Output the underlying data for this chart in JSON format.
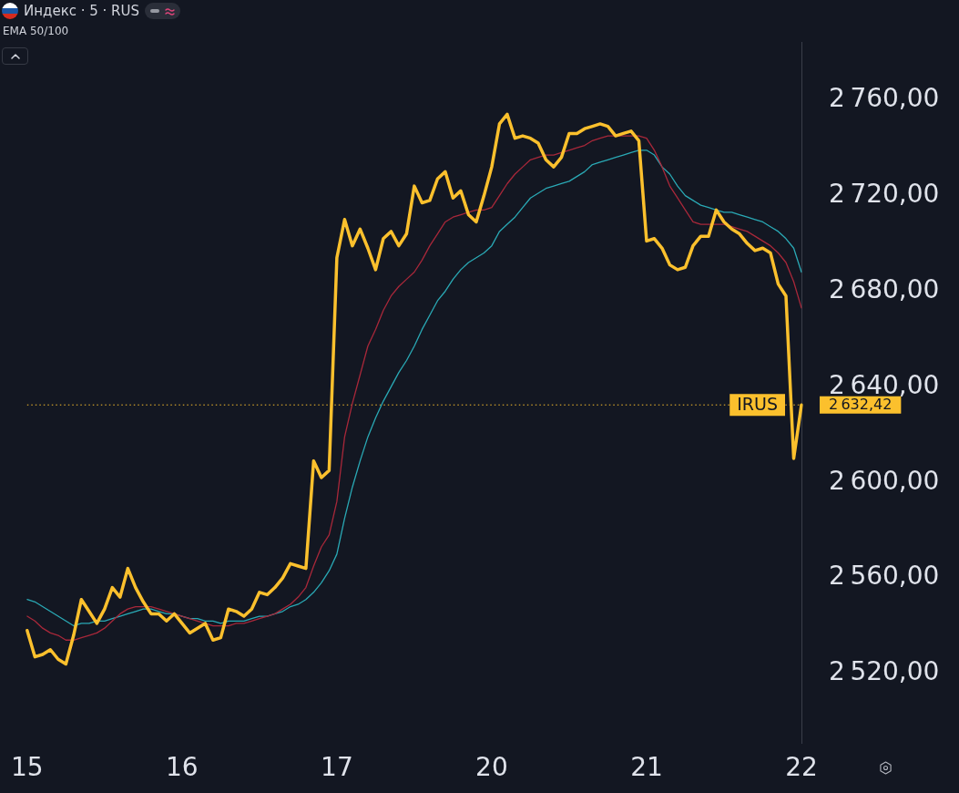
{
  "chart_data": {
    "type": "line",
    "title": "Индекс · 5 · RUS",
    "categories": [
      "15",
      null,
      null,
      null,
      null,
      null,
      null,
      null,
      null,
      null,
      null,
      null,
      null,
      null,
      null,
      null,
      null,
      null,
      null,
      null,
      "16",
      null,
      null,
      null,
      null,
      null,
      null,
      null,
      null,
      null,
      null,
      null,
      null,
      null,
      null,
      null,
      null,
      null,
      null,
      null,
      "17",
      null,
      null,
      null,
      null,
      null,
      null,
      null,
      null,
      null,
      null,
      null,
      null,
      null,
      null,
      null,
      null,
      null,
      null,
      null,
      "20",
      null,
      null,
      null,
      null,
      null,
      null,
      null,
      null,
      null,
      null,
      null,
      null,
      null,
      null,
      null,
      null,
      null,
      null,
      null,
      "21",
      null,
      null,
      null,
      null,
      null,
      null,
      null,
      null,
      null,
      null,
      null,
      null,
      null,
      null,
      null,
      null,
      null,
      null,
      null,
      "22"
    ],
    "series": [
      {
        "name": "IRUS",
        "color": "#fbc02d",
        "values": [
          2538,
          2527,
          2528,
          2530,
          2526,
          2524,
          2536,
          2551,
          2546,
          2541,
          2547,
          2556,
          2552,
          2564,
          2556,
          2550,
          2545,
          2545,
          2542,
          2545,
          2541,
          2537,
          2539,
          2541,
          2534,
          2535,
          2547,
          2546,
          2544,
          2547,
          2554,
          2553,
          2556,
          2560,
          2566,
          2565,
          2564,
          2609,
          2602,
          2605,
          2694,
          2710,
          2699,
          2706,
          2698,
          2689,
          2702,
          2705,
          2699,
          2704,
          2724,
          2717,
          2718,
          2727,
          2730,
          2719,
          2722,
          2712,
          2709,
          2720,
          2732,
          2750,
          2754,
          2744,
          2745,
          2744,
          2742,
          2735,
          2732,
          2736,
          2746,
          2746,
          2748,
          2749,
          2750,
          2749,
          2745,
          2746,
          2747,
          2743,
          2701,
          2702,
          2698,
          2691,
          2689,
          2690,
          2699,
          2703,
          2703,
          2714,
          2709,
          2706,
          2704,
          2700,
          2697,
          2698,
          2696,
          2683,
          2678,
          2610,
          2632.42
        ]
      },
      {
        "color": "#a8283a",
        "values": [
          2544,
          2542,
          2539,
          2537,
          2536,
          2534,
          2534,
          2535,
          2536,
          2537,
          2539,
          2542,
          2545,
          2547,
          2548,
          2548,
          2548,
          2547,
          2546,
          2545,
          2544,
          2543,
          2542,
          2541,
          2540,
          2540,
          2540,
          2541,
          2541,
          2542,
          2543,
          2544,
          2545,
          2547,
          2549,
          2552,
          2556,
          2565,
          2573,
          2578,
          2592,
          2619,
          2633,
          2645,
          2657,
          2664,
          2672,
          2678,
          2682,
          2685,
          2688,
          2693,
          2699,
          2704,
          2709,
          2711,
          2712,
          2713,
          2714,
          2714,
          2715,
          2720,
          2725,
          2729,
          2732,
          2735,
          2736,
          2737,
          2737,
          2738,
          2739,
          2740,
          2741,
          2743,
          2744,
          2745,
          2745,
          2745,
          2745,
          2745,
          2744,
          2739,
          2732,
          2724,
          2719,
          2714,
          2709,
          2708,
          2708,
          2708,
          2708,
          2707,
          2706,
          2705,
          2703,
          2701,
          2699,
          2696,
          2692,
          2684,
          2673
        ]
      },
      {
        "color": "#2aa9b5",
        "values": [
          2551,
          2550,
          2548,
          2546,
          2544,
          2542,
          2540,
          2541,
          2541,
          2542,
          2542,
          2543,
          2544,
          2545,
          2546,
          2547,
          2547,
          2546,
          2545,
          2545,
          2544,
          2543,
          2543,
          2542,
          2542,
          2541,
          2542,
          2542,
          2542,
          2543,
          2544,
          2544,
          2545,
          2546,
          2548,
          2549,
          2551,
          2554,
          2558,
          2563,
          2570,
          2585,
          2598,
          2609,
          2619,
          2627,
          2634,
          2640,
          2646,
          2651,
          2657,
          2664,
          2670,
          2676,
          2680,
          2685,
          2689,
          2692,
          2694,
          2696,
          2699,
          2705,
          2708,
          2711,
          2715,
          2719,
          2721,
          2723,
          2724,
          2725,
          2726,
          2728,
          2730,
          2733,
          2734,
          2735,
          2736,
          2737,
          2738,
          2739,
          2739,
          2737,
          2732,
          2729,
          2724,
          2720,
          2718,
          2716,
          2715,
          2714,
          2713,
          2713,
          2712,
          2711,
          2710,
          2709,
          2707,
          2705,
          2702,
          2698,
          2688
        ]
      }
    ],
    "ylim": [
      2491,
      2784
    ],
    "yticks": [
      {
        "value": 2520,
        "label": "2 520,00"
      },
      {
        "value": 2560,
        "label": "2 560,00"
      },
      {
        "value": 2600,
        "label": "2 600,00"
      },
      {
        "value": 2640,
        "label": "2 640,00"
      },
      {
        "value": 2680,
        "label": "2 680,00"
      },
      {
        "value": 2720,
        "label": "2 720,00"
      },
      {
        "value": 2760,
        "label": "2 760,00"
      }
    ],
    "ref_lines": [
      {
        "axis": "y",
        "value": 2632.42,
        "label": "2 632,42",
        "color": "#fbc02d",
        "line_style": "dotted"
      }
    ],
    "annotations": [
      "EMA 50/100"
    ]
  }
}
